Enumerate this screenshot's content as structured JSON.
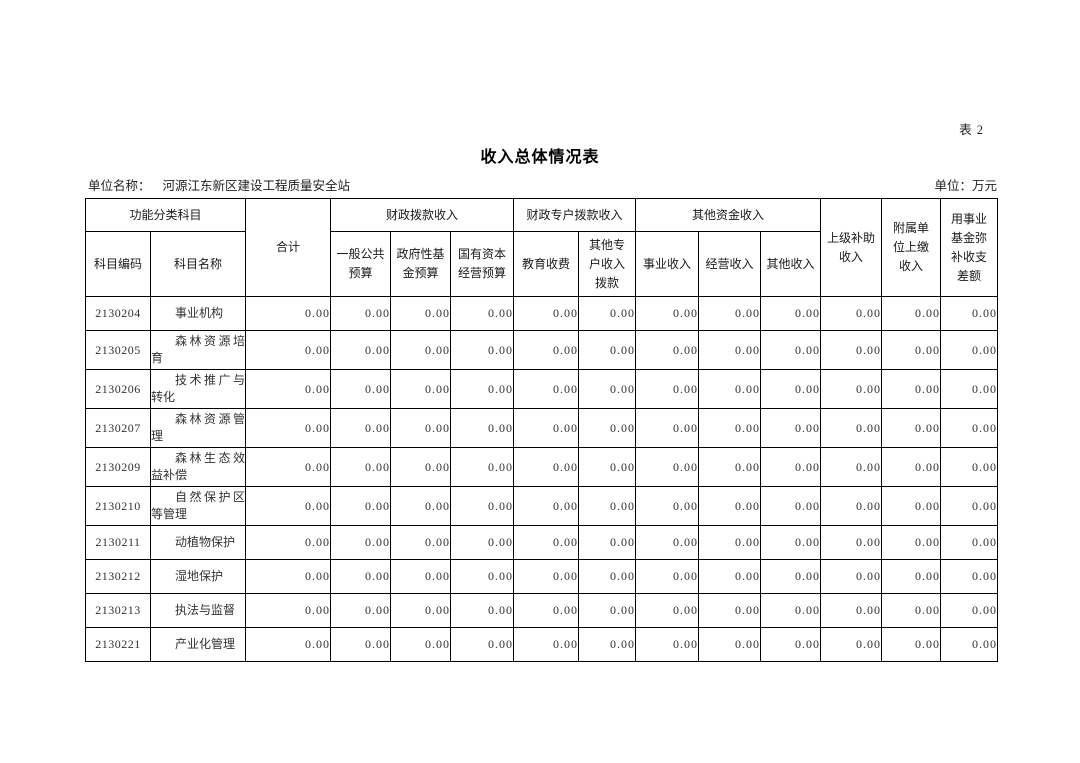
{
  "page": {
    "sheet_label": "表 2",
    "title": "收入总体情况表",
    "unit_name_label": "单位名称：",
    "unit_name_value": "河源江东新区建设工程质量安全站",
    "unit_label": "单位：万元"
  },
  "table": {
    "header": {
      "group_functional": "功能分类科目",
      "subject_code": "科目编码",
      "subject_name": "科目名称",
      "total": "合计",
      "group_fiscal": "财政拨款收入",
      "general_public_budget": "一般公共\n预算",
      "government_fund_budget": "政府性基\n金预算",
      "state_capital_budget": "国有资本\n经营预算",
      "group_special_account": "财政专户拨款收入",
      "education_fee": "教育收费",
      "other_special_account": "其他专\n户收入\n拨款",
      "group_other_funds": "其他资金收入",
      "business_income": "事业收入",
      "operating_income": "经营收入",
      "other_income": "其他收入",
      "superior_subsidy": "上级补助\n收入",
      "affiliated_remit": "附属单\n位上缴\n收入",
      "fund_offset": "用事业\n基金弥\n补收支\n差额"
    },
    "rows": [
      {
        "code": "2130204",
        "name": "事业机构",
        "values": [
          "0.00",
          "0.00",
          "0.00",
          "0.00",
          "0.00",
          "0.00",
          "0.00",
          "0.00",
          "0.00",
          "0.00",
          "0.00",
          "0.00"
        ]
      },
      {
        "code": "2130205",
        "name": "森林资源培育",
        "values": [
          "0.00",
          "0.00",
          "0.00",
          "0.00",
          "0.00",
          "0.00",
          "0.00",
          "0.00",
          "0.00",
          "0.00",
          "0.00",
          "0.00"
        ]
      },
      {
        "code": "2130206",
        "name": "技术推广与转化",
        "values": [
          "0.00",
          "0.00",
          "0.00",
          "0.00",
          "0.00",
          "0.00",
          "0.00",
          "0.00",
          "0.00",
          "0.00",
          "0.00",
          "0.00"
        ]
      },
      {
        "code": "2130207",
        "name": "森林资源管理",
        "values": [
          "0.00",
          "0.00",
          "0.00",
          "0.00",
          "0.00",
          "0.00",
          "0.00",
          "0.00",
          "0.00",
          "0.00",
          "0.00",
          "0.00"
        ]
      },
      {
        "code": "2130209",
        "name": "森林生态效益补偿",
        "values": [
          "0.00",
          "0.00",
          "0.00",
          "0.00",
          "0.00",
          "0.00",
          "0.00",
          "0.00",
          "0.00",
          "0.00",
          "0.00",
          "0.00"
        ]
      },
      {
        "code": "2130210",
        "name": "自然保护区等管理",
        "values": [
          "0.00",
          "0.00",
          "0.00",
          "0.00",
          "0.00",
          "0.00",
          "0.00",
          "0.00",
          "0.00",
          "0.00",
          "0.00",
          "0.00"
        ]
      },
      {
        "code": "2130211",
        "name": "动植物保护",
        "values": [
          "0.00",
          "0.00",
          "0.00",
          "0.00",
          "0.00",
          "0.00",
          "0.00",
          "0.00",
          "0.00",
          "0.00",
          "0.00",
          "0.00"
        ]
      },
      {
        "code": "2130212",
        "name": "湿地保护",
        "values": [
          "0.00",
          "0.00",
          "0.00",
          "0.00",
          "0.00",
          "0.00",
          "0.00",
          "0.00",
          "0.00",
          "0.00",
          "0.00",
          "0.00"
        ]
      },
      {
        "code": "2130213",
        "name": "执法与监督",
        "values": [
          "0.00",
          "0.00",
          "0.00",
          "0.00",
          "0.00",
          "0.00",
          "0.00",
          "0.00",
          "0.00",
          "0.00",
          "0.00",
          "0.00"
        ]
      },
      {
        "code": "2130221",
        "name": "产业化管理",
        "values": [
          "0.00",
          "0.00",
          "0.00",
          "0.00",
          "0.00",
          "0.00",
          "0.00",
          "0.00",
          "0.00",
          "0.00",
          "0.00",
          "0.00"
        ]
      }
    ]
  }
}
